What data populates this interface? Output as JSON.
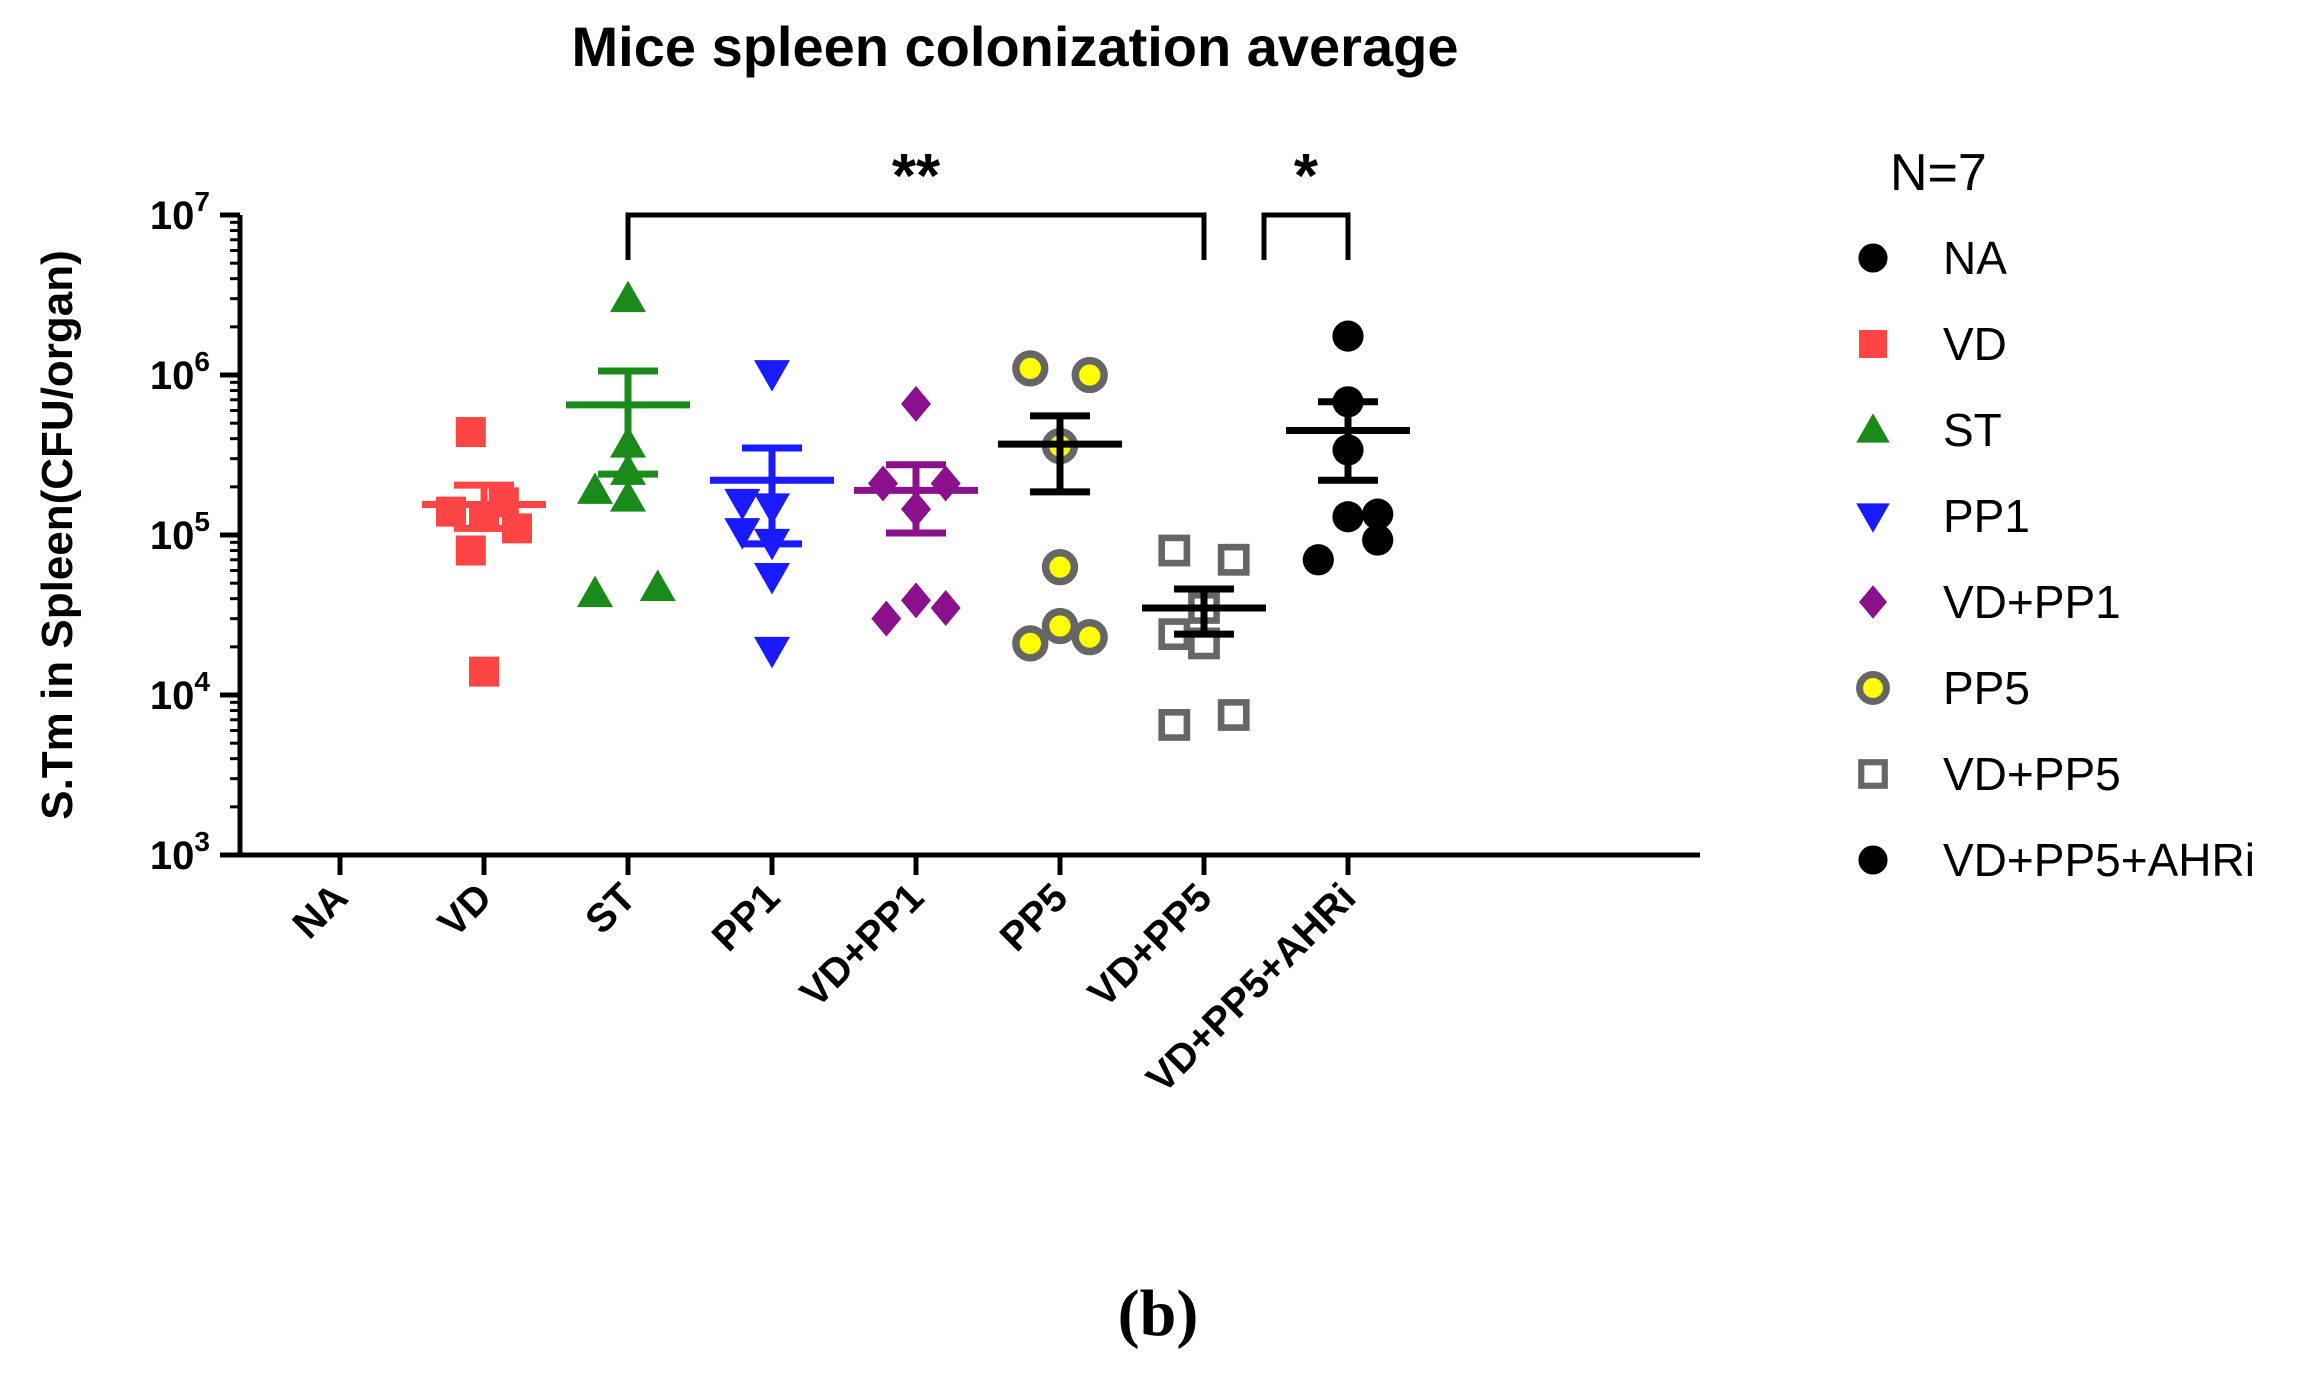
{
  "chart_data": {
    "type": "scatter",
    "title": "Mice spleen colonization average",
    "ylabel": "S.Tm in Spleen(CFU/organ)",
    "xlabel": "",
    "yscale": "log10",
    "ylim": [
      1000,
      10000000
    ],
    "ytick_base": "10",
    "yticks": [
      {
        "exp": 3,
        "base": "10",
        "sup": "3"
      },
      {
        "exp": 4,
        "base": "10",
        "sup": "4"
      },
      {
        "exp": 5,
        "base": "10",
        "sup": "5"
      },
      {
        "exp": 6,
        "base": "10",
        "sup": "6"
      },
      {
        "exp": 7,
        "base": "10",
        "sup": "7"
      }
    ],
    "categories": [
      "NA",
      "VD",
      "ST",
      "PP1",
      "VD+PP1",
      "PP5",
      "VD+PP5",
      "VD+PP5+AHRi"
    ],
    "legend_title": "N=7",
    "legend_position": "right",
    "series": [
      {
        "name": "NA",
        "marker": "circle",
        "color": "#000000",
        "fill": "#000000",
        "points": [],
        "mean": null,
        "sem": null
      },
      {
        "name": "VD",
        "marker": "square",
        "color": "#ff4444",
        "fill": "#ff4444",
        "points": [
          [
            -0.5,
            140000
          ],
          [
            -0.2,
            440000
          ],
          [
            0.0,
            130000
          ],
          [
            0.3,
            160000
          ],
          [
            0.5,
            110000
          ],
          [
            -0.2,
            80000
          ],
          [
            0.0,
            14000
          ]
        ],
        "mean": 155000,
        "sem": [
          110000,
          205000
        ]
      },
      {
        "name": "ST",
        "marker": "triangle-up",
        "color": "#1a8a1a",
        "fill": "#1a8a1a",
        "points": [
          [
            -0.5,
            190000
          ],
          [
            0.0,
            3000000
          ],
          [
            0.0,
            370000
          ],
          [
            0.0,
            170000
          ],
          [
            -0.5,
            43000
          ],
          [
            0.45,
            47000
          ],
          [
            0.0,
            250000
          ]
        ],
        "mean": 650000,
        "sem": [
          240000,
          1060000
        ]
      },
      {
        "name": "PP1",
        "marker": "triangle-down",
        "color": "#1a1aff",
        "fill": "#1a1aff",
        "points": [
          [
            0.0,
            1020000
          ],
          [
            -0.45,
            160000
          ],
          [
            -0.45,
            105000
          ],
          [
            0.0,
            150000
          ],
          [
            0.0,
            55000
          ],
          [
            0.0,
            19000
          ],
          [
            0.0,
            90000
          ]
        ],
        "mean": 220000,
        "sem": [
          88000,
          350000
        ]
      },
      {
        "name": "VD+PP1",
        "marker": "diamond",
        "color": "#8b108b",
        "fill": "#8b108b",
        "points": [
          [
            0.0,
            660000
          ],
          [
            -0.5,
            210000
          ],
          [
            0.45,
            210000
          ],
          [
            0.0,
            145000
          ],
          [
            -0.45,
            30000
          ],
          [
            0.0,
            39000
          ],
          [
            0.45,
            35000
          ]
        ],
        "mean": 190000,
        "sem": [
          103000,
          275000
        ]
      },
      {
        "name": "PP5",
        "marker": "circle-dot",
        "color": "#666666",
        "fill": "#ffff00",
        "points": [
          [
            -0.45,
            1100000
          ],
          [
            0.45,
            1000000
          ],
          [
            0.0,
            360000
          ],
          [
            0.0,
            63000
          ],
          [
            -0.45,
            21000
          ],
          [
            0.0,
            27000
          ],
          [
            0.45,
            23000
          ]
        ],
        "mean": 370000,
        "sem": [
          186000,
          555000
        ]
      },
      {
        "name": "VD+PP5",
        "marker": "square-open",
        "color": "#666666",
        "fill": "#ffffff",
        "points": [
          [
            -0.45,
            80000
          ],
          [
            0.45,
            70000
          ],
          [
            0.0,
            35000
          ],
          [
            -0.45,
            24000
          ],
          [
            0.0,
            21000
          ],
          [
            0.45,
            7500
          ],
          [
            -0.45,
            6500
          ]
        ],
        "mean": 35000,
        "sem": [
          24000,
          46000
        ]
      },
      {
        "name": "VD+PP5+AHRi",
        "marker": "circle",
        "color": "#000000",
        "fill": "#000000",
        "points": [
          [
            0.0,
            1750000
          ],
          [
            0.0,
            680000
          ],
          [
            0.0,
            340000
          ],
          [
            -0.45,
            70000
          ],
          [
            0.0,
            130000
          ],
          [
            0.45,
            135000
          ],
          [
            0.45,
            93000
          ]
        ],
        "mean": 450000,
        "sem": [
          220000,
          680000
        ]
      }
    ],
    "significance": [
      {
        "from": "ST",
        "to": "VD+PP5",
        "label": "**"
      },
      {
        "from": "VD+PP5",
        "to": "VD+PP5+AHRi",
        "label": "*"
      }
    ]
  },
  "caption": "(b)"
}
